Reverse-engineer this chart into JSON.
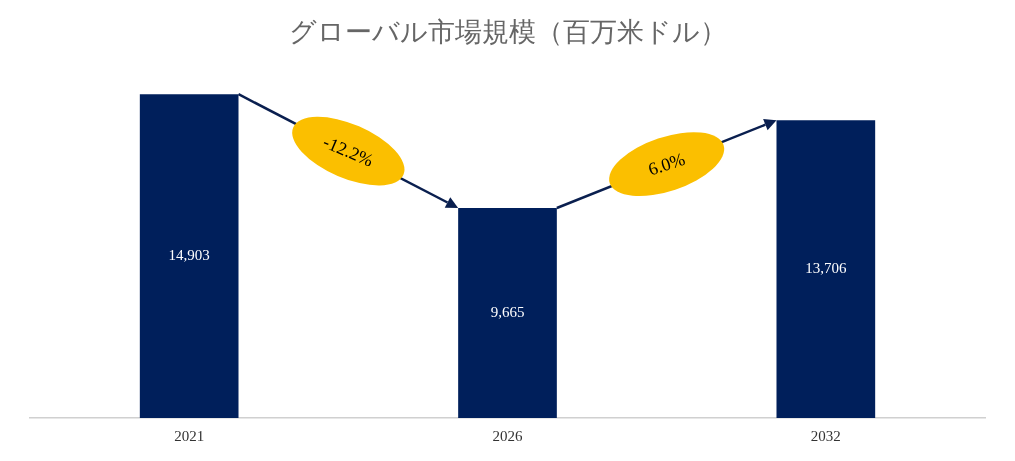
{
  "chart_data": {
    "type": "bar",
    "title": "グローバル市場規模（百万米ドル）",
    "categories": [
      "2021",
      "2026",
      "2032"
    ],
    "values": [
      14903,
      9665,
      13706
    ],
    "value_labels": [
      "14,903",
      "9,665",
      "13,706"
    ],
    "color": "#001f5b",
    "annotations": [
      "-12.2%",
      "6.0%"
    ],
    "grid": false,
    "legend": false
  }
}
